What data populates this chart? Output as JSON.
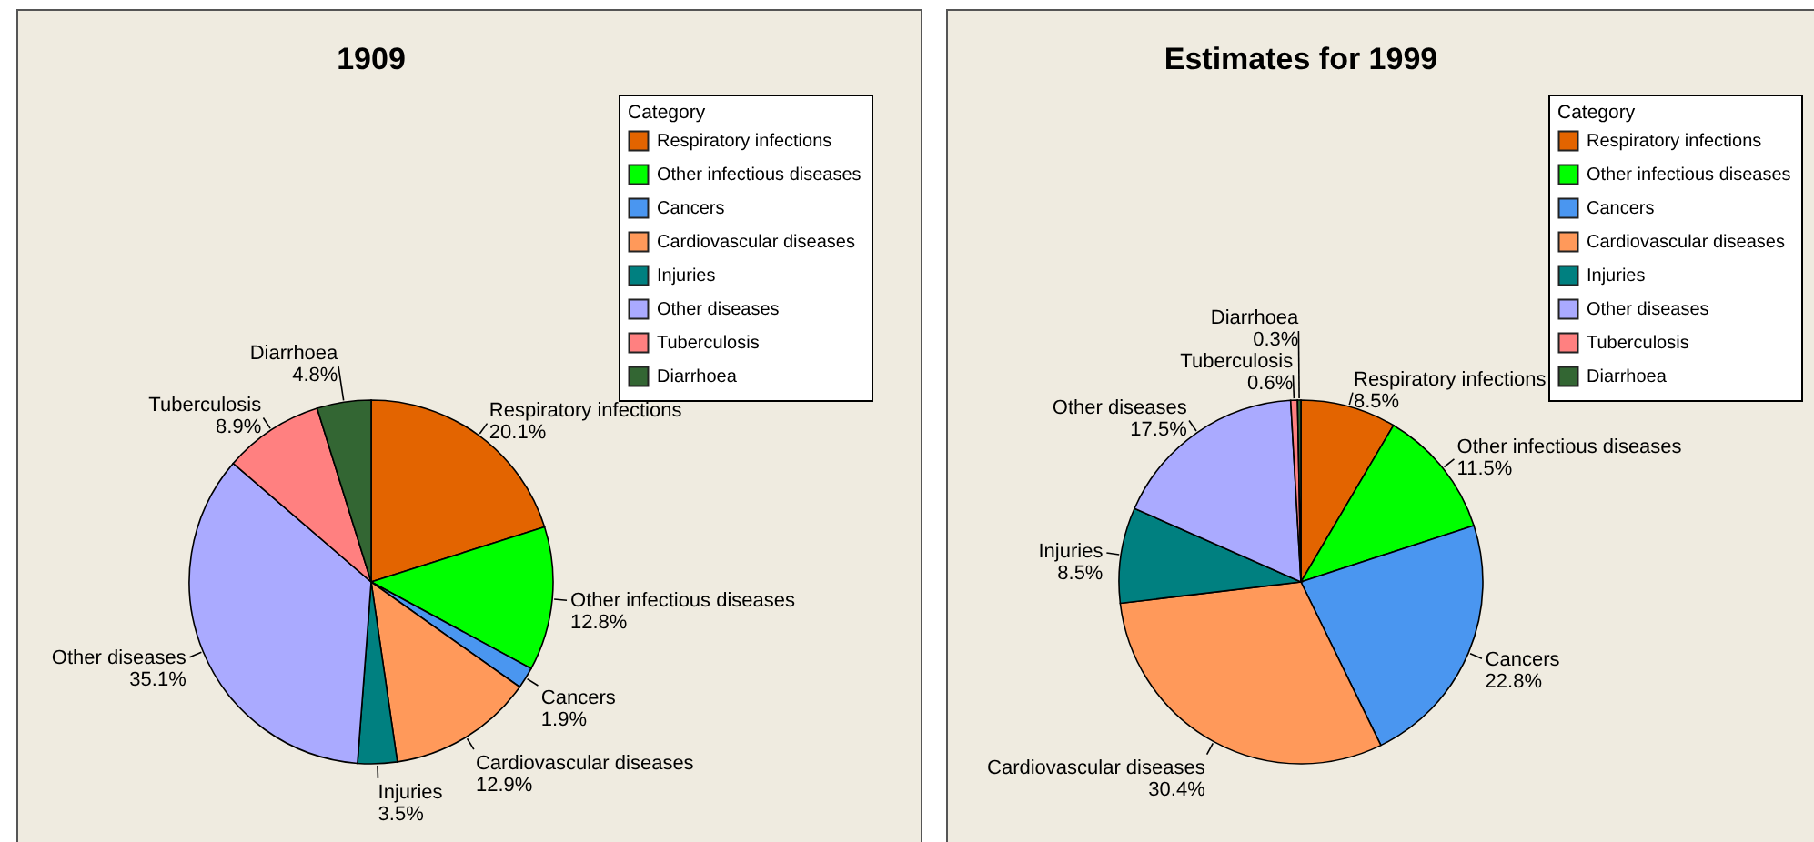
{
  "chart_data": [
    {
      "type": "pie",
      "title": "1909",
      "categories": [
        "Respiratory infections",
        "Other infectious diseases",
        "Cancers",
        "Cardiovascular diseases",
        "Injuries",
        "Other diseases",
        "Tuberculosis",
        "Diarrhoea"
      ],
      "values": [
        20.1,
        12.8,
        1.9,
        12.9,
        3.5,
        35.1,
        8.9,
        4.8
      ],
      "colors": [
        "#e36400",
        "#00ff00",
        "#4a96f0",
        "#ff995a",
        "#008080",
        "#aaaaff",
        "#ff8080",
        "#336633"
      ],
      "value_labels": [
        "20.1%",
        "12.8%",
        "1.9%",
        "12.9%",
        "3.5%",
        "35.1%",
        "8.9%",
        "4.8%"
      ],
      "legend": "top right",
      "legend_title": "Category"
    },
    {
      "type": "pie",
      "title": "Estimates for 1999",
      "categories": [
        "Respiratory infections",
        "Other infectious diseases",
        "Cancers",
        "Cardiovascular diseases",
        "Injuries",
        "Other diseases",
        "Tuberculosis",
        "Diarrhoea"
      ],
      "values": [
        8.5,
        11.5,
        22.8,
        30.4,
        8.5,
        17.5,
        0.6,
        0.3
      ],
      "colors": [
        "#e36400",
        "#00ff00",
        "#4a96f0",
        "#ff995a",
        "#008080",
        "#aaaaff",
        "#ff8080",
        "#336633"
      ],
      "value_labels": [
        "8.5%",
        "11.5%",
        "22.8%",
        "30.4%",
        "8.5%",
        "17.5%",
        "0.6%",
        "0.3%"
      ],
      "legend": "top right",
      "legend_title": "Category"
    }
  ]
}
